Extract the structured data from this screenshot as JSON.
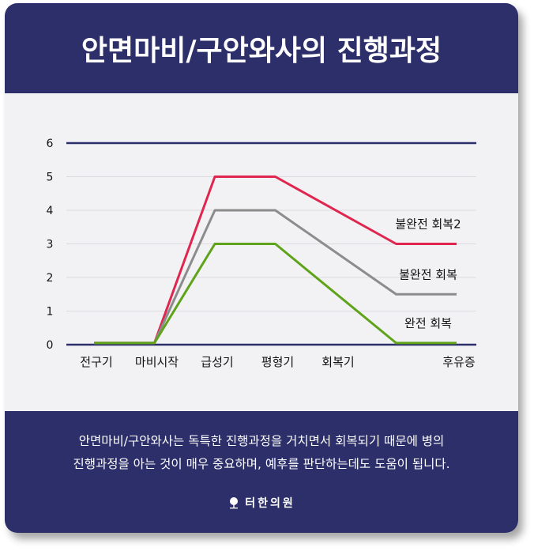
{
  "header": {
    "title": "안면마비/구안와사의 진행과정"
  },
  "chart_data": {
    "type": "line",
    "title": "",
    "xlabel": "",
    "ylabel": "",
    "ylim": [
      0,
      6
    ],
    "yticks": [
      "0",
      "1",
      "2",
      "3",
      "4",
      "5",
      "6"
    ],
    "categories": [
      "전구기",
      "마비시작",
      "급성기",
      "평형기",
      "회복기",
      "",
      "후유증"
    ],
    "x": [
      0,
      1,
      2,
      3,
      4,
      5,
      6
    ],
    "series": [
      {
        "name": "불완전 회복2",
        "color": "#e0254e",
        "points": [
          [
            0,
            0.05
          ],
          [
            1,
            0.05
          ],
          [
            2,
            5
          ],
          [
            3,
            5
          ],
          [
            5,
            3
          ],
          [
            6,
            3
          ]
        ]
      },
      {
        "name": "불완전 회복",
        "color": "#8c8c8c",
        "points": [
          [
            0,
            0.05
          ],
          [
            1,
            0.05
          ],
          [
            2,
            4
          ],
          [
            3,
            4
          ],
          [
            5,
            1.5
          ],
          [
            6,
            1.5
          ]
        ]
      },
      {
        "name": "완전 회복",
        "color": "#5fa31a",
        "points": [
          [
            0,
            0.05
          ],
          [
            1,
            0.05
          ],
          [
            2,
            3
          ],
          [
            3,
            3
          ],
          [
            5,
            0.05
          ],
          [
            6,
            0.05
          ]
        ]
      }
    ],
    "grid": true,
    "top_line_color": "#2d2f6b"
  },
  "footer": {
    "desc_line1": "안면마비/구안와사는 독특한 진행과정을 거치면서 회복되기 때문에 병의",
    "desc_line2": "진행과정을 아는 것이 매우 중요하며, 예후를 판단하는데도 도움이 됩니다.",
    "brand": "터한의원"
  }
}
